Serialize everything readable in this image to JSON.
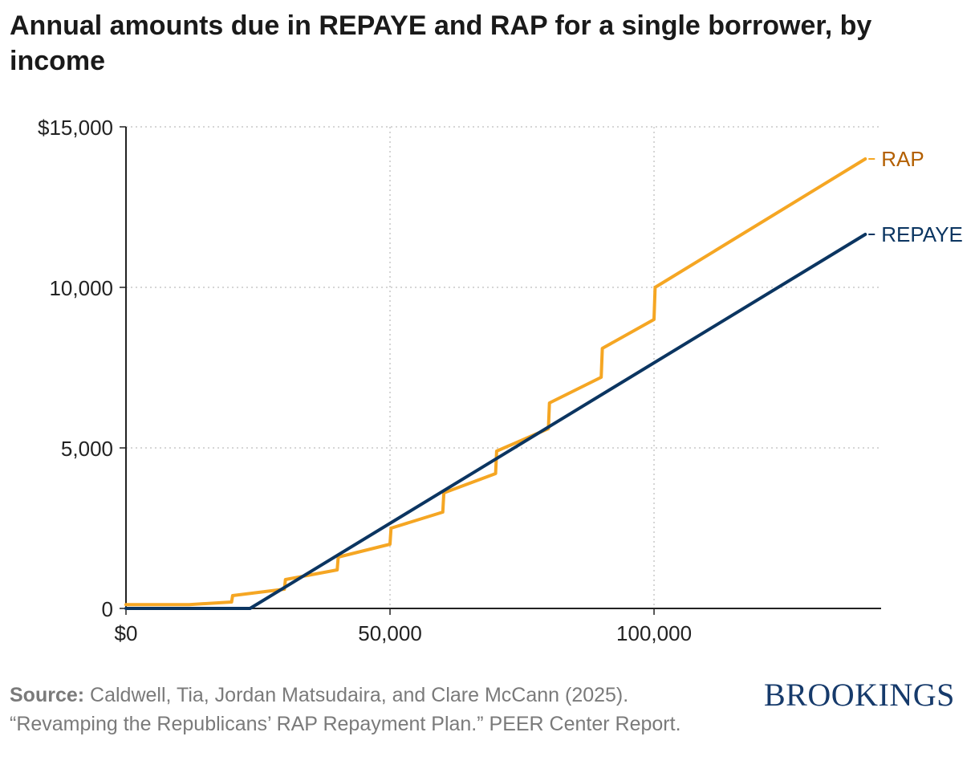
{
  "chart_data": {
    "type": "line",
    "title": "Annual amounts due in REPAYE and RAP for a single borrower, by income",
    "xlabel": "",
    "ylabel": "",
    "xlim": [
      0,
      143000
    ],
    "ylim": [
      0,
      15000
    ],
    "x_ticks": [
      {
        "value": 0,
        "label": "$0"
      },
      {
        "value": 50000,
        "label": "50,000"
      },
      {
        "value": 100000,
        "label": "100,000"
      }
    ],
    "y_ticks": [
      {
        "value": 0,
        "label": "0"
      },
      {
        "value": 5000,
        "label": "5,000"
      },
      {
        "value": 10000,
        "label": "10,000"
      },
      {
        "value": 15000,
        "label": "$15,000"
      }
    ],
    "grid": true,
    "series": [
      {
        "name": "RAP",
        "label": "RAP",
        "color": "#f5a623",
        "label_color": "#b35f00",
        "points": [
          [
            0,
            120
          ],
          [
            12000,
            120
          ],
          [
            20000,
            200
          ],
          [
            20200,
            400
          ],
          [
            30000,
            600
          ],
          [
            30200,
            900
          ],
          [
            40000,
            1200
          ],
          [
            40200,
            1600
          ],
          [
            50000,
            2000
          ],
          [
            50200,
            2500
          ],
          [
            60000,
            3000
          ],
          [
            60200,
            3600
          ],
          [
            70000,
            4200
          ],
          [
            70200,
            4900
          ],
          [
            80000,
            5600
          ],
          [
            80200,
            6400
          ],
          [
            90000,
            7200
          ],
          [
            90200,
            8100
          ],
          [
            100000,
            9000
          ],
          [
            100200,
            10000
          ],
          [
            140000,
            14000
          ]
        ]
      },
      {
        "name": "REPAYE",
        "label": "REPAYE",
        "color": "#0b3561",
        "label_color": "#0b3561",
        "points": [
          [
            0,
            0
          ],
          [
            23500,
            0
          ],
          [
            140000,
            11650
          ]
        ]
      }
    ]
  },
  "footer": {
    "source_label": "Source:",
    "source_text": "Caldwell, Tia, Jordan Matsudaira, and Clare McCann (2025). “Revamping the Republicans’ RAP Repayment Plan.” PEER Center Report.",
    "logo_text": "BROOKINGS"
  }
}
